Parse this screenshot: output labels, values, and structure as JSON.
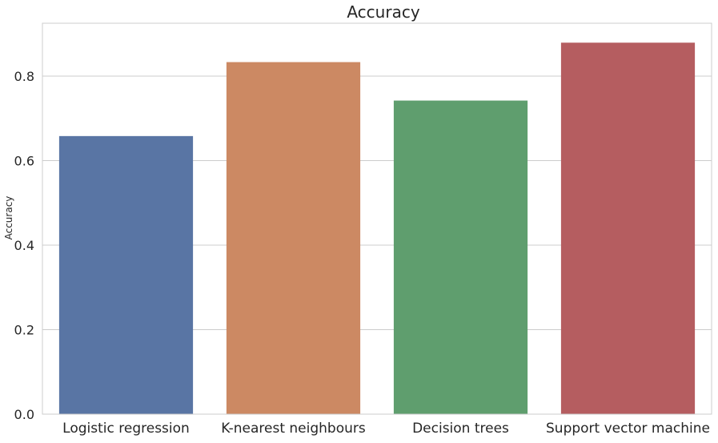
{
  "chart_data": {
    "type": "bar",
    "title": "Accuracy",
    "xlabel": "",
    "ylabel": "Accuracy",
    "categories": [
      "Logistic regression",
      "K-nearest neighbours",
      "Decision trees",
      "Support vector machine"
    ],
    "values": [
      0.658,
      0.833,
      0.742,
      0.879
    ],
    "colors": [
      "#5975a4",
      "#cc8963",
      "#5f9e6e",
      "#b55d60"
    ],
    "ylim": [
      0,
      0.925
    ],
    "yticks": [
      0.0,
      0.2,
      0.4,
      0.6,
      0.8
    ],
    "ytick_labels": [
      "0.0",
      "0.2",
      "0.4",
      "0.6",
      "0.8"
    ],
    "grid": true,
    "grid_axis": "y",
    "legend": "none"
  }
}
